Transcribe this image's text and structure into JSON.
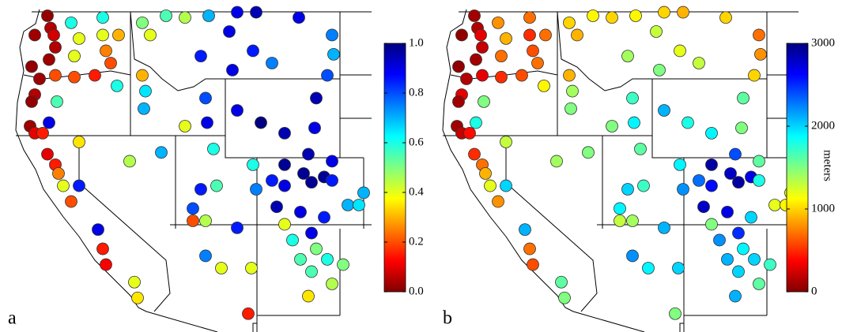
{
  "chart_data": [
    {
      "type": "scatter",
      "panel_label": "a",
      "x": [
        -122.0,
        -121.8,
        -122.8,
        -121.6,
        -121.5,
        -121.9,
        -123.0,
        -122.5,
        -122.8,
        -123.0,
        -123.1,
        -122.8,
        -122.3,
        -122.0,
        -121.5,
        -121.3,
        -121.0,
        -120.5,
        -120.0,
        -121.4,
        -121.9,
        -120.0,
        -118.8,
        -118.5,
        -118.3,
        -116.5,
        -116.3,
        -120.5,
        -118.5,
        -120.0,
        -118.5,
        -117.5,
        -120.3,
        -118.3,
        -121.5,
        -120.3,
        -119.0,
        -118.0,
        -117.6,
        -116.0,
        -115.5,
        -116.0,
        -115.8,
        -115.9,
        -114.5,
        -113.3,
        -111.8,
        -110.0,
        -108.8,
        -106.1,
        -110.5,
        -109.0,
        -110.3,
        -112.3,
        -107.8,
        -104.0,
        -103.9,
        -104.3,
        -112.0,
        -111.9,
        -111.5,
        -112.3,
        -111.3,
        -112.8,
        -110.0,
        -108.5,
        -107.0,
        -105.0,
        -105.1,
        -105.5,
        -104.0,
        -113.3,
        -116.8,
        -114.8,
        -107.0,
        -105.8,
        -104.5,
        -105.3,
        -107.0,
        -107.8,
        -104.0,
        -103.0,
        -102.3,
        -102.0,
        -107.5,
        -106.0,
        -104.5,
        -107.0,
        -105.3,
        -109.0,
        -108.8,
        -110.0,
        -112.0,
        -112.8,
        -106.5,
        -105.0,
        -106.0,
        -104.3,
        -105.3,
        -103.3,
        -104.0,
        -105.5,
        -112.0,
        -111.0,
        -109.1,
        -109.3
      ],
      "y": [
        48.6,
        47.9,
        47.5,
        47.5,
        46.8,
        46.1,
        45.7,
        45.0,
        44.1,
        43.7,
        42.3,
        41.9,
        41.9,
        40.7,
        40.1,
        39.6,
        38.9,
        38.0,
        38.9,
        43.7,
        42.5,
        41.4,
        36.4,
        35.3,
        34.4,
        33.4,
        32.5,
        48.2,
        48.5,
        47.3,
        47.5,
        47.5,
        46.3,
        46.6,
        45.2,
        45.1,
        45.2,
        45.9,
        44.6,
        48.2,
        47.5,
        45.2,
        44.3,
        43.3,
        48.6,
        48.5,
        48.6,
        48.8,
        48.8,
        48.5,
        47.7,
        46.6,
        45.5,
        46.3,
        45.9,
        47.5,
        46.4,
        45.2,
        43.9,
        42.5,
        41.0,
        38.7,
        38.9,
        37.6,
        43.2,
        42.5,
        41.9,
        43.9,
        42.2,
        40.7,
        40.3,
        42.3,
        40.3,
        40.8,
        40.1,
        39.6,
        39.4,
        39.1,
        38.9,
        39.2,
        39.2,
        37.8,
        37.8,
        38.5,
        37.7,
        37.4,
        37.1,
        36.7,
        36.2,
        40.1,
        38.7,
        36.5,
        36.9,
        36.9,
        35.8,
        35.3,
        34.7,
        34.7,
        34.0,
        34.4,
        33.3,
        32.6,
        34.9,
        34.2,
        34.2,
        31.6
      ],
      "values": [
        0.02,
        0.05,
        0.03,
        0.08,
        0.05,
        0.03,
        0.02,
        0.03,
        0.05,
        0.02,
        0.03,
        0.1,
        0.15,
        0.1,
        0.15,
        0.25,
        0.4,
        0.2,
        0.85,
        0.55,
        0.9,
        0.35,
        0.9,
        0.15,
        0.12,
        0.4,
        0.35,
        0.6,
        0.6,
        0.4,
        0.4,
        0.3,
        0.4,
        0.25,
        0.2,
        0.2,
        0.15,
        0.2,
        0.6,
        0.5,
        0.4,
        0.3,
        0.65,
        0.7,
        0.55,
        0.45,
        0.7,
        0.9,
        0.95,
        0.9,
        0.9,
        0.85,
        0.9,
        0.85,
        0.75,
        0.75,
        0.7,
        0.8,
        0.8,
        0.9,
        0.6,
        0.85,
        0.55,
        0.8,
        0.9,
        1.0,
        0.95,
        0.95,
        0.9,
        0.95,
        0.9,
        0.4,
        0.45,
        0.7,
        0.98,
        0.98,
        0.98,
        0.98,
        0.9,
        0.85,
        0.85,
        0.7,
        0.65,
        0.7,
        0.95,
        0.9,
        0.85,
        0.4,
        0.9,
        0.6,
        0.75,
        0.85,
        0.45,
        0.2,
        0.6,
        0.5,
        0.55,
        0.6,
        0.55,
        0.5,
        0.45,
        0.35,
        0.75,
        0.4,
        0.4,
        0.15
      ],
      "colormap": [
        "#800000",
        "#ff0000",
        "#ff8000",
        "#ffff00",
        "#80ff80",
        "#00ffff",
        "#0080ff",
        "#0000ff",
        "#000080"
      ],
      "clim": [
        0,
        1
      ],
      "cticks": [
        {
          "value": 0,
          "label": "0.0"
        },
        {
          "value": 0.2,
          "label": "0.2"
        },
        {
          "value": 0.4,
          "label": "0.4"
        },
        {
          "value": 0.6,
          "label": "0.6"
        },
        {
          "value": 0.8,
          "label": "0.8"
        },
        {
          "value": 1,
          "label": "1.0"
        }
      ]
    },
    {
      "type": "scatter",
      "panel_label": "b",
      "x": [
        -122.0,
        -121.8,
        -122.8,
        -121.6,
        -121.5,
        -121.9,
        -123.0,
        -122.5,
        -122.8,
        -123.0,
        -123.1,
        -122.8,
        -122.3,
        -122.0,
        -121.5,
        -121.3,
        -121.0,
        -120.5,
        -120.0,
        -121.4,
        -121.9,
        -120.0,
        -118.8,
        -118.5,
        -118.3,
        -116.5,
        -116.3,
        -120.5,
        -118.5,
        -120.0,
        -118.5,
        -117.5,
        -120.3,
        -118.3,
        -121.5,
        -120.3,
        -119.0,
        -118.0,
        -117.6,
        -116.0,
        -115.5,
        -116.0,
        -115.8,
        -115.9,
        -114.5,
        -113.3,
        -111.8,
        -110.0,
        -108.8,
        -106.1,
        -110.5,
        -109.0,
        -110.3,
        -112.3,
        -107.8,
        -104.0,
        -103.9,
        -104.3,
        -112.0,
        -111.9,
        -111.5,
        -112.3,
        -111.3,
        -112.8,
        -110.0,
        -108.5,
        -107.0,
        -105.0,
        -105.1,
        -105.5,
        -104.0,
        -113.3,
        -116.8,
        -114.8,
        -107.0,
        -105.8,
        -104.5,
        -105.3,
        -107.0,
        -107.8,
        -104.0,
        -103.0,
        -102.3,
        -102.0,
        -107.5,
        -106.0,
        -104.5,
        -107.0,
        -105.3,
        -109.0,
        -108.8,
        -110.0,
        -112.0,
        -112.8,
        -106.5,
        -105.0,
        -106.0,
        -104.3,
        -105.3,
        -103.3,
        -104.0,
        -105.5,
        -112.0,
        -111.0,
        -109.1,
        -109.3
      ],
      "y": [
        48.6,
        47.9,
        47.5,
        47.5,
        46.8,
        46.1,
        45.7,
        45.0,
        44.1,
        43.7,
        42.3,
        41.9,
        41.9,
        40.7,
        40.1,
        39.6,
        38.9,
        38.0,
        38.9,
        43.7,
        42.5,
        41.4,
        36.4,
        35.3,
        34.4,
        33.4,
        32.5,
        48.2,
        48.5,
        47.3,
        47.5,
        47.5,
        46.3,
        46.6,
        45.2,
        45.1,
        45.2,
        45.9,
        44.6,
        48.2,
        47.5,
        45.2,
        44.3,
        43.3,
        48.6,
        48.5,
        48.6,
        48.8,
        48.8,
        48.5,
        47.7,
        46.6,
        45.5,
        46.3,
        45.9,
        47.5,
        46.4,
        45.2,
        43.9,
        42.5,
        41.0,
        38.7,
        38.9,
        37.6,
        43.2,
        42.5,
        41.9,
        43.9,
        42.2,
        40.7,
        40.3,
        42.3,
        40.3,
        40.8,
        40.1,
        39.6,
        39.4,
        39.1,
        38.9,
        39.2,
        39.2,
        37.8,
        37.8,
        38.5,
        37.7,
        37.4,
        37.1,
        36.7,
        36.2,
        40.1,
        38.7,
        36.5,
        36.9,
        36.9,
        35.8,
        35.3,
        34.7,
        34.7,
        34.0,
        34.4,
        33.3,
        32.6,
        34.9,
        34.2,
        34.2,
        31.6
      ],
      "values": [
        100,
        150,
        50,
        300,
        200,
        100,
        50,
        150,
        300,
        100,
        100,
        200,
        400,
        500,
        700,
        900,
        1200,
        800,
        2000,
        1500,
        1800,
        1300,
        2100,
        700,
        600,
        1600,
        1500,
        800,
        700,
        900,
        500,
        700,
        700,
        600,
        300,
        500,
        600,
        700,
        1100,
        1000,
        900,
        900,
        1400,
        1500,
        1100,
        1000,
        1100,
        1000,
        900,
        1000,
        1300,
        1200,
        1500,
        1400,
        1300,
        700,
        800,
        1000,
        1700,
        1900,
        1600,
        2000,
        1700,
        1900,
        2100,
        1800,
        1900,
        1600,
        1500,
        2400,
        1600,
        1500,
        1400,
        1500,
        2900,
        2800,
        2700,
        2900,
        2600,
        2300,
        1800,
        1200,
        1100,
        1200,
        2800,
        2700,
        2000,
        1500,
        2500,
        1900,
        2200,
        2100,
        1400,
        1300,
        2200,
        1900,
        2100,
        2000,
        2000,
        1700,
        1600,
        2100,
        2200,
        1900,
        2000,
        1500
      ],
      "colormap": [
        "#800000",
        "#ff0000",
        "#ff8000",
        "#ffff00",
        "#80ff80",
        "#00ffff",
        "#0080ff",
        "#0000ff",
        "#000080"
      ],
      "clim": [
        0,
        3000
      ],
      "cticks": [
        0,
        1000,
        2000,
        3000
      ],
      "colorbar_label": "meters"
    }
  ]
}
